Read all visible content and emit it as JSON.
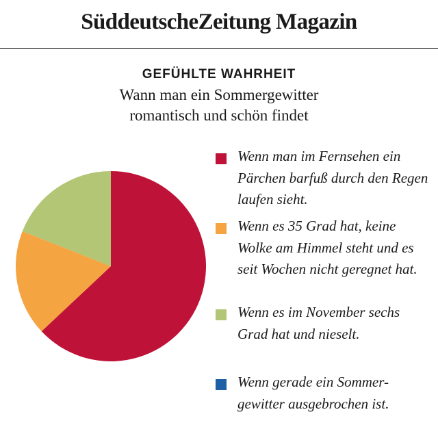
{
  "masthead": {
    "title": "SüddeutscheZeitung Magazin"
  },
  "chart_data": {
    "type": "pie",
    "kicker": "GEFÜHLTE WAHRHEIT",
    "title": "Wann man ein Sommergewitter romantisch und schön findet",
    "start_angle_deg": 0,
    "direction": "clockwise",
    "slices": [
      {
        "label": "Wenn man im Fernsehen ein Pärchen barfuß durch den Regen laufen sieht.",
        "value": 63,
        "color": "#bf1238"
      },
      {
        "label": "Wenn es 35 Grad hat, keine Wolke am Himmel steht und es seit Wochen nicht geregnet hat.",
        "value": 18,
        "color": "#f5a442"
      },
      {
        "label": "Wenn es im November sechs Grad hat und nieselt.",
        "value": 19,
        "color": "#b2c675"
      },
      {
        "label": "Wenn gerade ein Sommer-gewitter ausgebrochen ist.",
        "value": 0,
        "color": "#1f5fa6"
      }
    ]
  }
}
